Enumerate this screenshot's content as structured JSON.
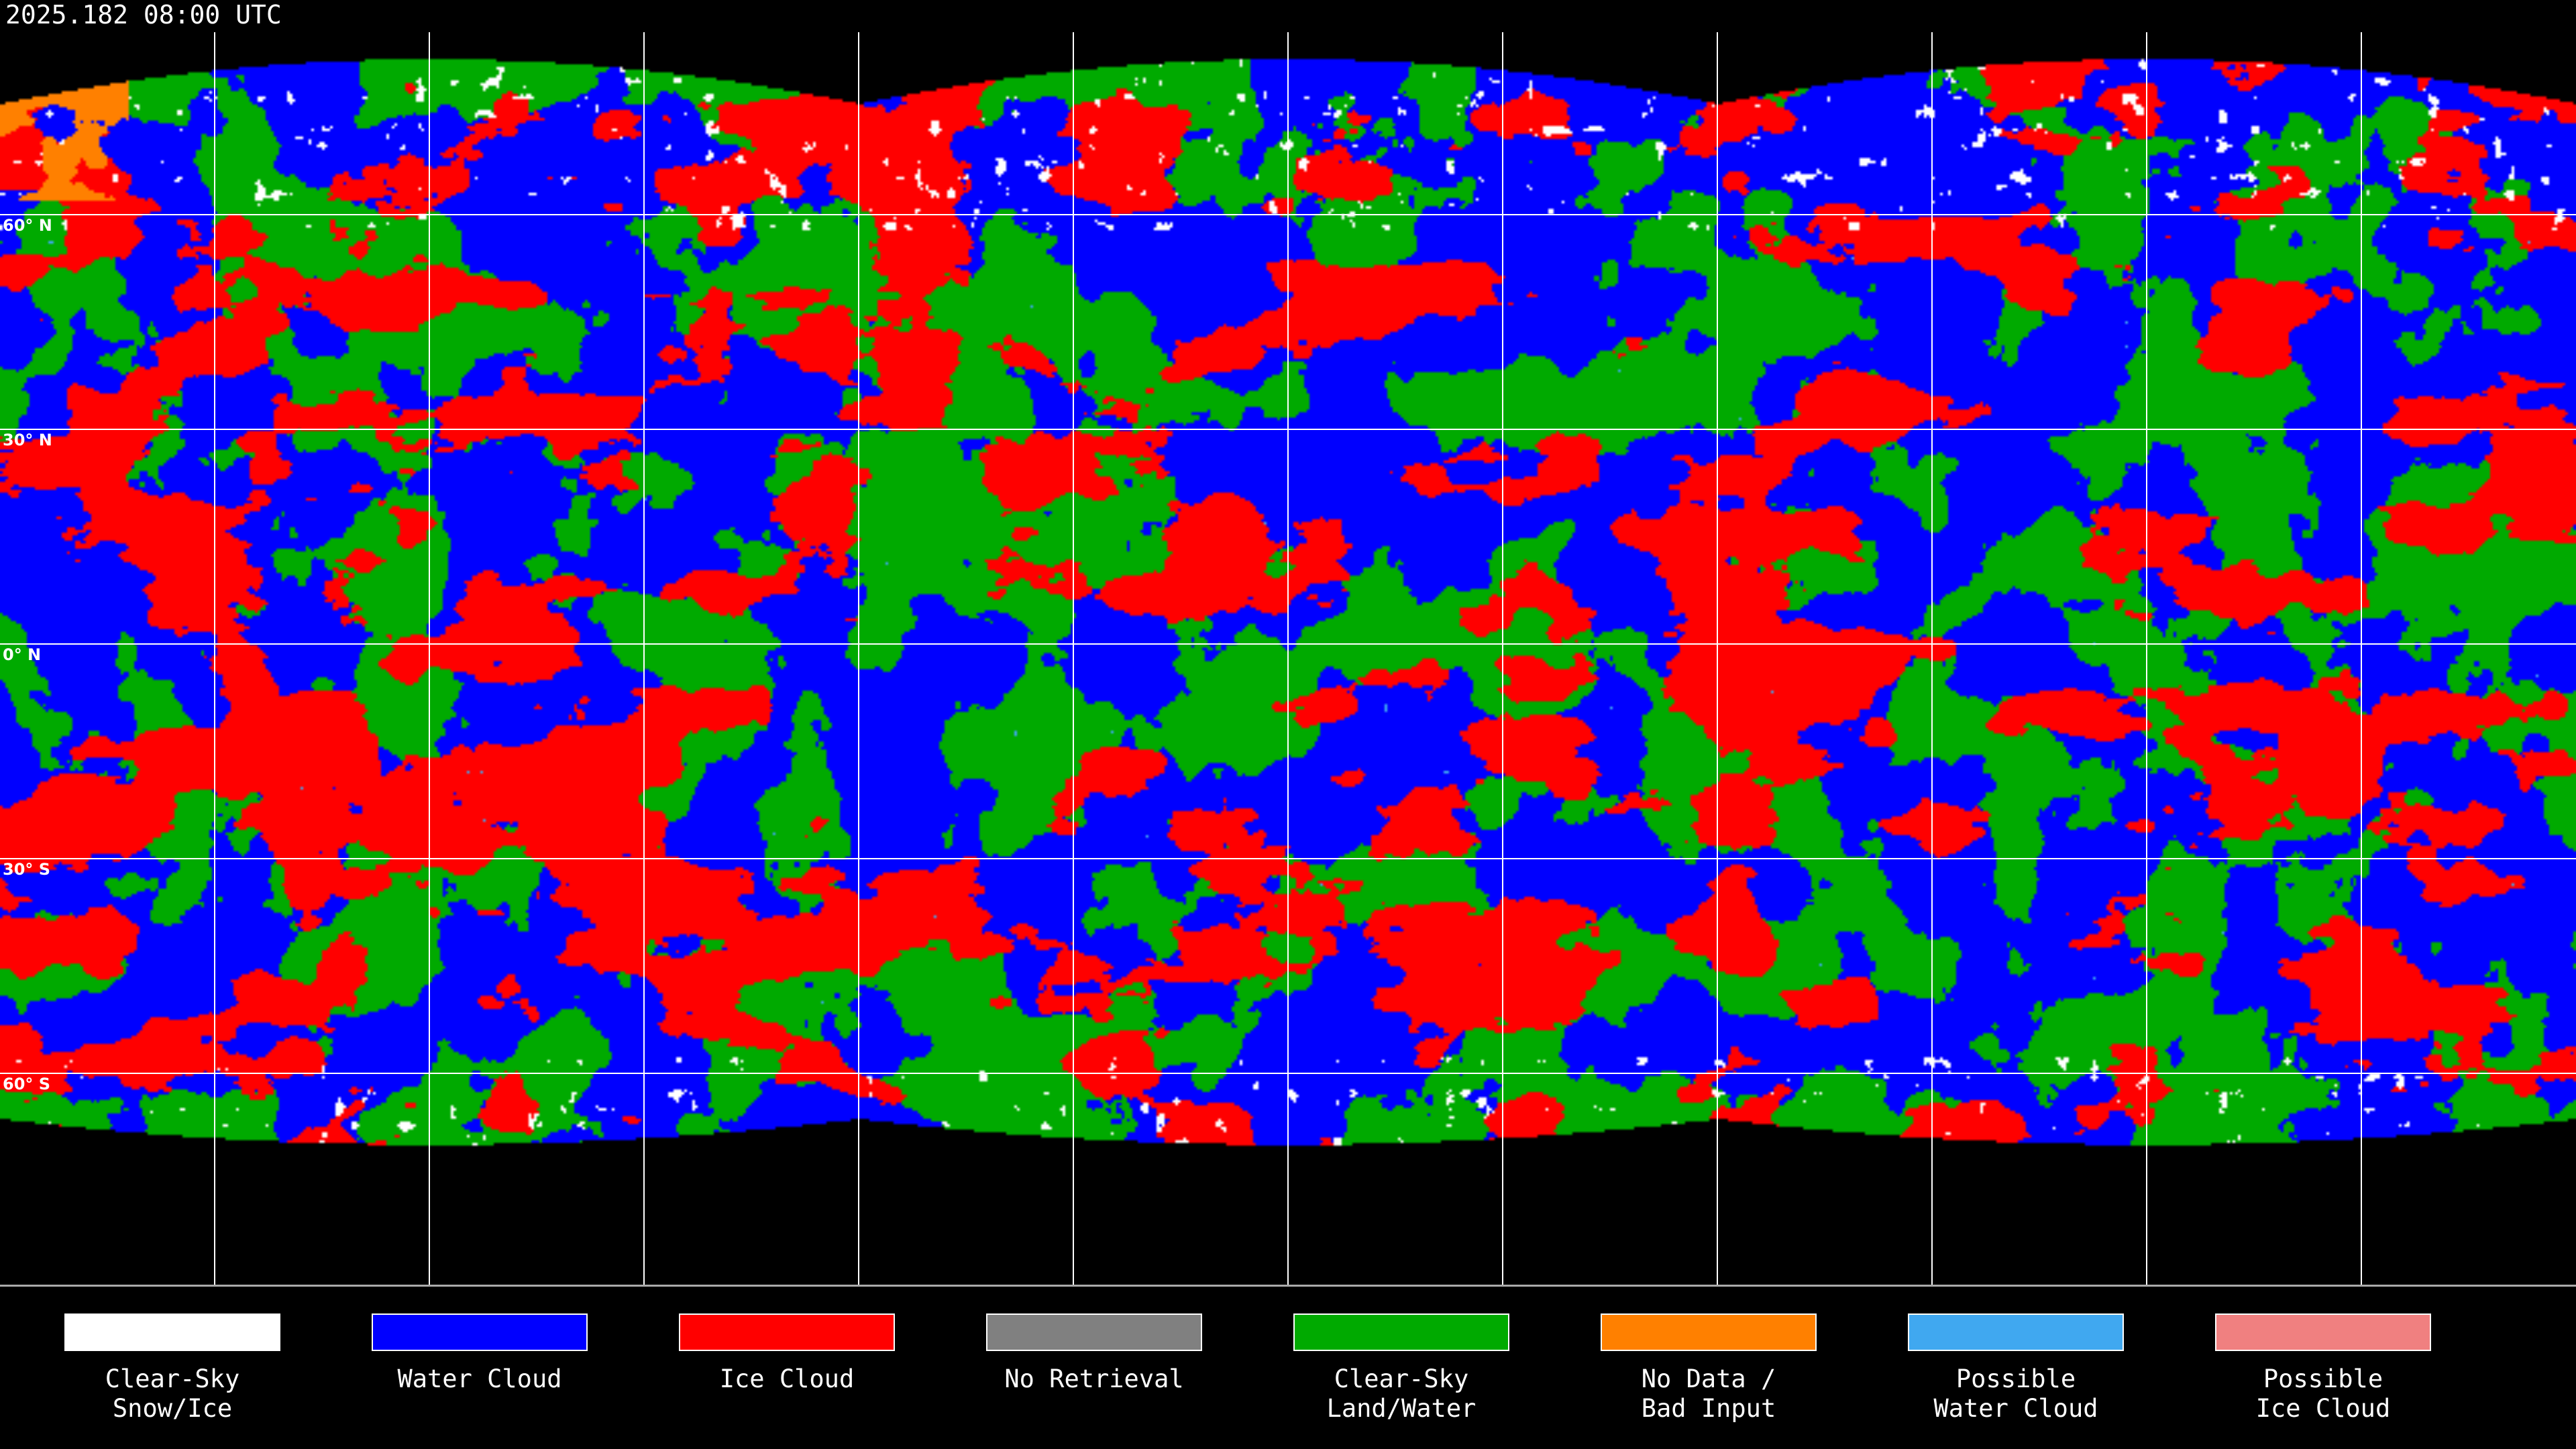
{
  "timestamp": "2025.182 08:00 UTC",
  "latitude_labels": [
    "60° N",
    "30° N",
    "0° N",
    "30° S",
    "60° S"
  ],
  "legend": [
    {
      "label": "Clear-Sky\nSnow/Ice",
      "color": "#ffffff"
    },
    {
      "label": "Water Cloud",
      "color": "#0000ff"
    },
    {
      "label": "Ice Cloud",
      "color": "#ff0000"
    },
    {
      "label": "No Retrieval",
      "color": "#808080"
    },
    {
      "label": "Clear-Sky\nLand/Water",
      "color": "#00aa00"
    },
    {
      "label": "No Data /\nBad Input",
      "color": "#ff8000"
    },
    {
      "label": "Possible\nWater Cloud",
      "color": "#40a8f0"
    },
    {
      "label": "Possible\nIce Cloud",
      "color": "#f08080"
    }
  ]
}
